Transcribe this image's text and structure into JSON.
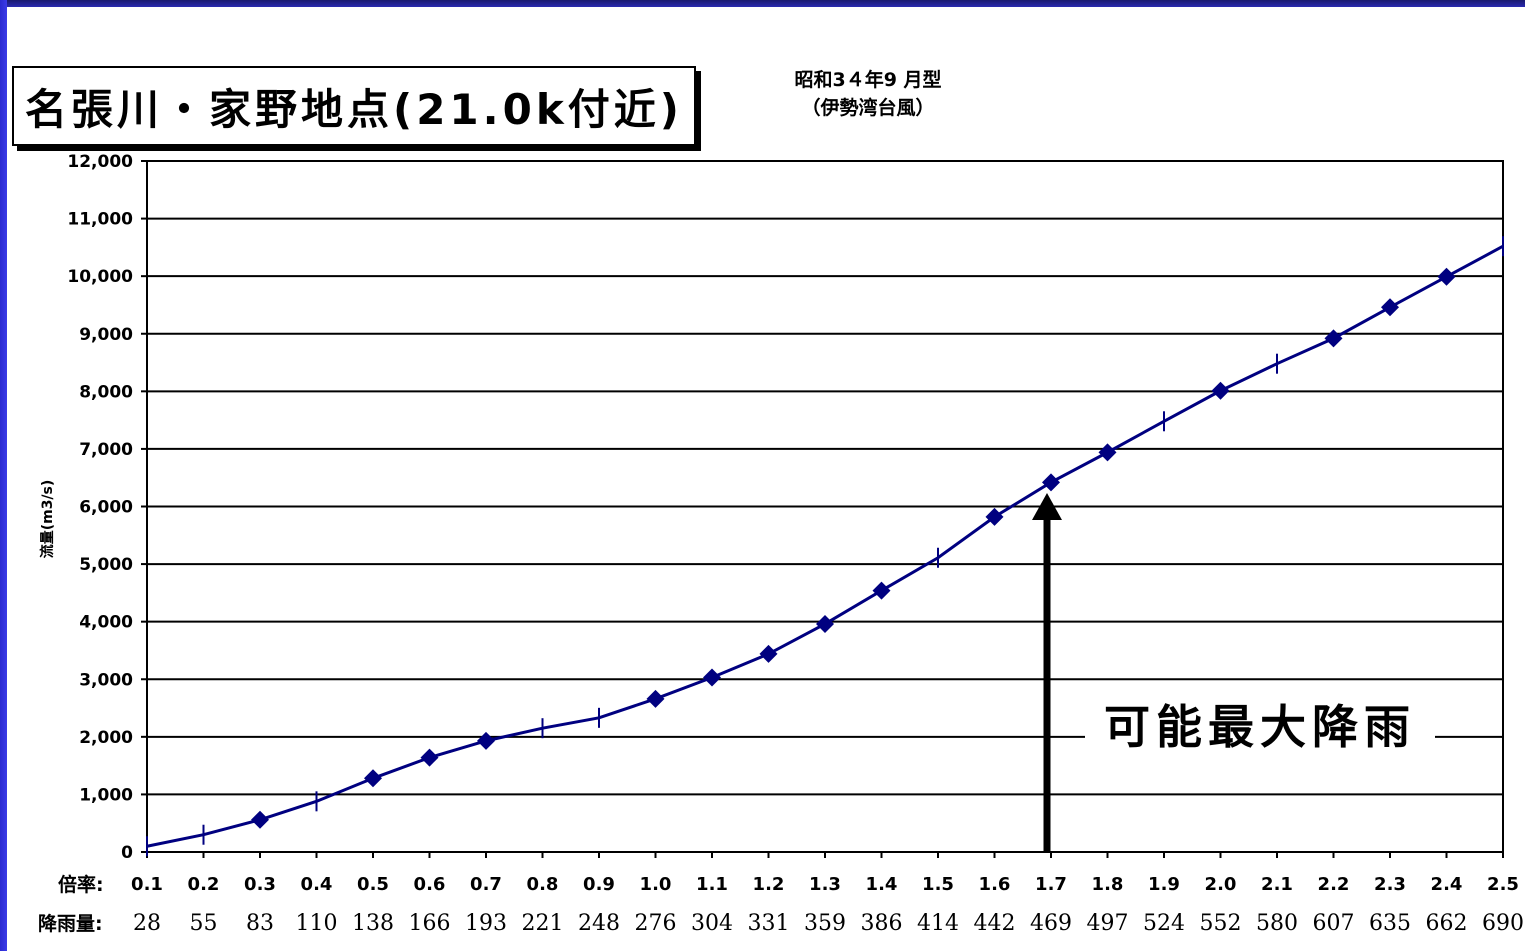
{
  "title": "名張川・家野地点(21.0k付近)",
  "subtitle_line1": "昭和3４年9 月型",
  "subtitle_line2": "（伊勢湾台風）",
  "colors": {
    "line": "#000080",
    "frame_top": "#1a1a6e",
    "frame_left": "#2a2ad0",
    "grid": "#000000"
  },
  "x_row_label": "倍率:",
  "rain_row_label": "降雨量:",
  "annotation": "可能最大降雨",
  "chart_data": {
    "type": "line",
    "title": "名張川・家野地点(21.0k付近)",
    "ylabel": "流量(m3/s)",
    "ylim": [
      0,
      12000
    ],
    "yticks": [
      "0",
      "1,000",
      "2,000",
      "3,000",
      "4,000",
      "5,000",
      "6,000",
      "7,000",
      "8,000",
      "9,000",
      "10,000",
      "11,000",
      "12,000"
    ],
    "ytick_values": [
      0,
      1000,
      2000,
      3000,
      4000,
      5000,
      6000,
      7000,
      8000,
      9000,
      10000,
      11000,
      12000
    ],
    "x_labels": [
      "0.1",
      "0.2",
      "0.3",
      "0.4",
      "0.5",
      "0.6",
      "0.7",
      "0.8",
      "0.9",
      "1.0",
      "1.1",
      "1.2",
      "1.3",
      "1.4",
      "1.5",
      "1.6",
      "1.7",
      "1.8",
      "1.9",
      "2.0",
      "2.1",
      "2.2",
      "2.3",
      "2.4",
      "2.5"
    ],
    "rainfall_labels": [
      "28",
      "55",
      "83",
      "110",
      "138",
      "166",
      "193",
      "221",
      "248",
      "276",
      "304",
      "331",
      "359",
      "386",
      "414",
      "442",
      "469",
      "497",
      "524",
      "552",
      "580",
      "607",
      "635",
      "662",
      "690"
    ],
    "x": [
      0.1,
      0.2,
      0.3,
      0.4,
      0.5,
      0.6,
      0.7,
      0.8,
      0.9,
      1.0,
      1.1,
      1.2,
      1.3,
      1.4,
      1.5,
      1.6,
      1.7,
      1.8,
      1.9,
      2.0,
      2.1,
      2.2,
      2.3,
      2.4,
      2.5
    ],
    "y": [
      100,
      300,
      560,
      880,
      1280,
      1640,
      1930,
      2150,
      2330,
      2660,
      3030,
      3440,
      3960,
      4540,
      5110,
      5820,
      6420,
      6940,
      7480,
      8010,
      8480,
      8920,
      9460,
      9990,
      10520
    ],
    "marker": [
      "none",
      "none",
      "diamond",
      "none",
      "diamond",
      "diamond",
      "diamond",
      "none",
      "none",
      "diamond",
      "diamond",
      "diamond",
      "diamond",
      "diamond",
      "none",
      "diamond",
      "diamond",
      "diamond",
      "none",
      "diamond",
      "none",
      "diamond",
      "diamond",
      "diamond",
      "none"
    ],
    "grid": true,
    "arrow_at_x": 1.7
  }
}
